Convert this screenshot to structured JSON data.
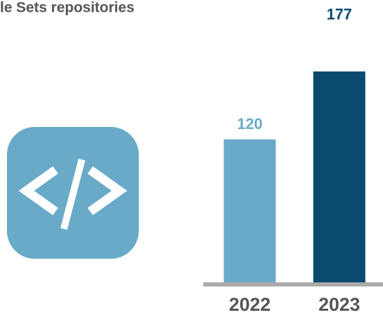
{
  "chart_data": {
    "type": "bar",
    "title": "le Sets repositories",
    "categories": [
      "2022",
      "2023"
    ],
    "values": [
      120,
      177
    ],
    "colors": [
      "#6aaac9",
      "#0b4a6f"
    ],
    "ylim": [
      0,
      237
    ]
  }
}
